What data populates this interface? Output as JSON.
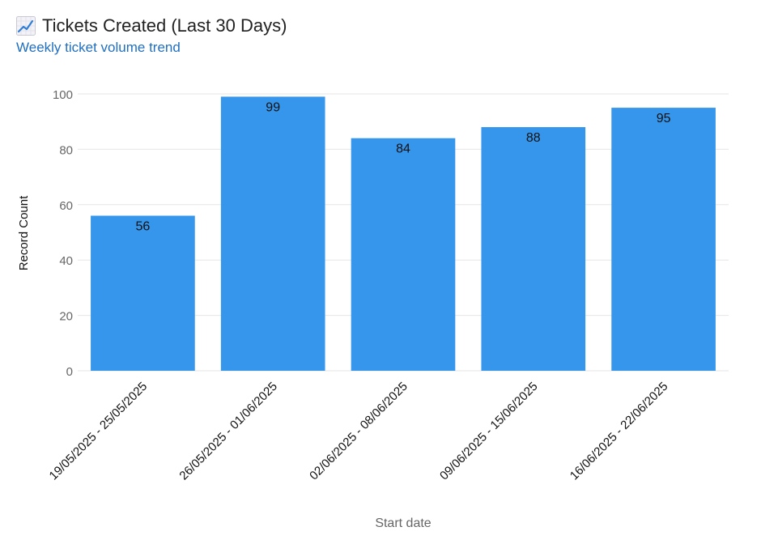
{
  "header": {
    "title": "Tickets Created (Last 30 Days)",
    "subtitle": "Weekly ticket volume trend",
    "icon": "chart-increasing-icon"
  },
  "colors": {
    "bar": "#3596eb",
    "grid": "#e6e6e6",
    "tick_text": "#666666",
    "label_text": "#111111",
    "subtitle": "#1f6fc0"
  },
  "chart_data": {
    "type": "bar",
    "title": "",
    "xlabel": "Start date",
    "ylabel": "Record Count",
    "categories": [
      "19/05/2025 - 25/05/2025",
      "26/05/2025 - 01/06/2025",
      "02/06/2025 - 08/06/2025",
      "09/06/2025 - 15/06/2025",
      "16/06/2025 - 22/06/2025"
    ],
    "values": [
      56,
      99,
      84,
      88,
      95
    ],
    "ylim": [
      0,
      100
    ],
    "yticks": [
      0,
      20,
      40,
      60,
      80,
      100
    ],
    "data_labels": true,
    "grid": true,
    "legend": "none"
  }
}
